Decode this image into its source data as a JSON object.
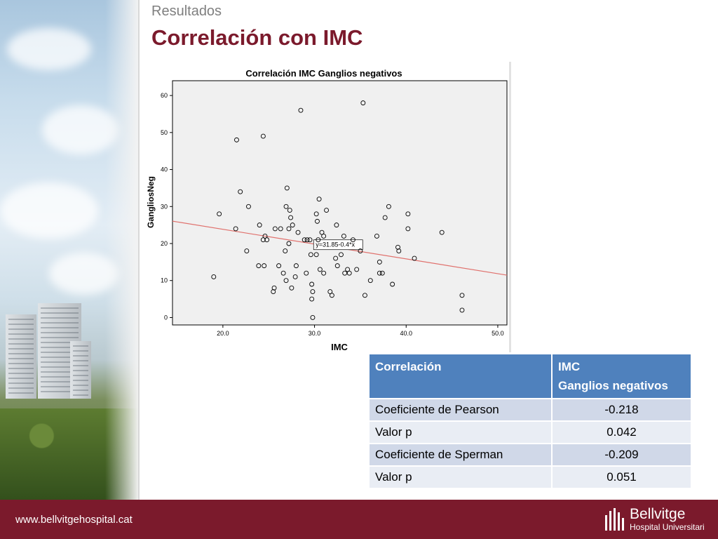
{
  "slide": {
    "subtitle": "Resultados",
    "title": "Correlación con IMC",
    "footer_url": "www.bellvitgehospital.cat",
    "logo_name": "Bellvitge",
    "logo_sub": "Hospital Universitari"
  },
  "colors": {
    "accent": "#7b1a2c",
    "table_header": "#4f81bd",
    "fit_line": "#e0716d"
  },
  "chart_data": {
    "type": "scatter",
    "title": "Correlación IMC Ganglios negativos",
    "xlabel": "IMC",
    "ylabel": "GangliosNeg",
    "xlim": [
      14.5,
      51.0
    ],
    "ylim": [
      -2,
      64
    ],
    "x_ticks": [
      "20.0",
      "30.0",
      "40.0",
      "50.0"
    ],
    "y_ticks": [
      "0",
      "10",
      "20",
      "30",
      "40",
      "50",
      "60"
    ],
    "fit_line": {
      "label": "y=31.85-0.4*x",
      "intercept": 31.85,
      "slope": -0.4
    },
    "points": [
      [
        19,
        11
      ],
      [
        19.6,
        28
      ],
      [
        21.4,
        24
      ],
      [
        21.5,
        48
      ],
      [
        21.9,
        34
      ],
      [
        22.6,
        18
      ],
      [
        22.8,
        30
      ],
      [
        23.9,
        14
      ],
      [
        24.0,
        25
      ],
      [
        24.4,
        49
      ],
      [
        24.4,
        21
      ],
      [
        24.5,
        14
      ],
      [
        24.6,
        22
      ],
      [
        24.8,
        21
      ],
      [
        25.5,
        7
      ],
      [
        25.6,
        8
      ],
      [
        25.7,
        24
      ],
      [
        26.1,
        14
      ],
      [
        26.3,
        24
      ],
      [
        26.6,
        12
      ],
      [
        26.8,
        18
      ],
      [
        26.9,
        10
      ],
      [
        26.9,
        30
      ],
      [
        27.0,
        35
      ],
      [
        27.2,
        24
      ],
      [
        27.2,
        20
      ],
      [
        27.3,
        29
      ],
      [
        27.4,
        27
      ],
      [
        27.5,
        8
      ],
      [
        27.6,
        25
      ],
      [
        27.9,
        11
      ],
      [
        28.0,
        14
      ],
      [
        28.2,
        23
      ],
      [
        28.5,
        56
      ],
      [
        28.9,
        21
      ],
      [
        29.1,
        12
      ],
      [
        29.2,
        21
      ],
      [
        29.5,
        21
      ],
      [
        29.6,
        17
      ],
      [
        29.7,
        5
      ],
      [
        29.7,
        9
      ],
      [
        29.8,
        0
      ],
      [
        29.8,
        7
      ],
      [
        30.2,
        17
      ],
      [
        30.2,
        28
      ],
      [
        30.3,
        26
      ],
      [
        30.4,
        21
      ],
      [
        30.5,
        32
      ],
      [
        30.6,
        13
      ],
      [
        30.8,
        23
      ],
      [
        31.0,
        12
      ],
      [
        31.0,
        22
      ],
      [
        31.3,
        29
      ],
      [
        31.7,
        7
      ],
      [
        31.9,
        6
      ],
      [
        32.3,
        16
      ],
      [
        32.4,
        25
      ],
      [
        32.5,
        14
      ],
      [
        32.9,
        17
      ],
      [
        33.2,
        22
      ],
      [
        33.3,
        12
      ],
      [
        33.6,
        13
      ],
      [
        33.8,
        12
      ],
      [
        34.2,
        21
      ],
      [
        34.6,
        13
      ],
      [
        35.0,
        18
      ],
      [
        35.3,
        58
      ],
      [
        35.5,
        6
      ],
      [
        36.1,
        10
      ],
      [
        36.8,
        22
      ],
      [
        37.1,
        15
      ],
      [
        37.1,
        12
      ],
      [
        37.4,
        12
      ],
      [
        37.7,
        27
      ],
      [
        38.1,
        30
      ],
      [
        38.5,
        9
      ],
      [
        39.1,
        19
      ],
      [
        39.2,
        18
      ],
      [
        40.2,
        28
      ],
      [
        40.2,
        24
      ],
      [
        40.9,
        16
      ],
      [
        43.9,
        23
      ],
      [
        46.1,
        6
      ],
      [
        46.1,
        2
      ]
    ]
  },
  "stats_table": {
    "header": {
      "col1": "Correlación",
      "col2_line1": "IMC",
      "col2_line2": "Ganglios negativos"
    },
    "rows": [
      {
        "label": "Coeficiente de Pearson",
        "value": "-0.218"
      },
      {
        "label": "Valor p",
        "value": "0.042"
      },
      {
        "label": "Coeficiente de Sperman",
        "value": "-0.209"
      },
      {
        "label": "Valor p",
        "value": "0.051"
      }
    ]
  }
}
